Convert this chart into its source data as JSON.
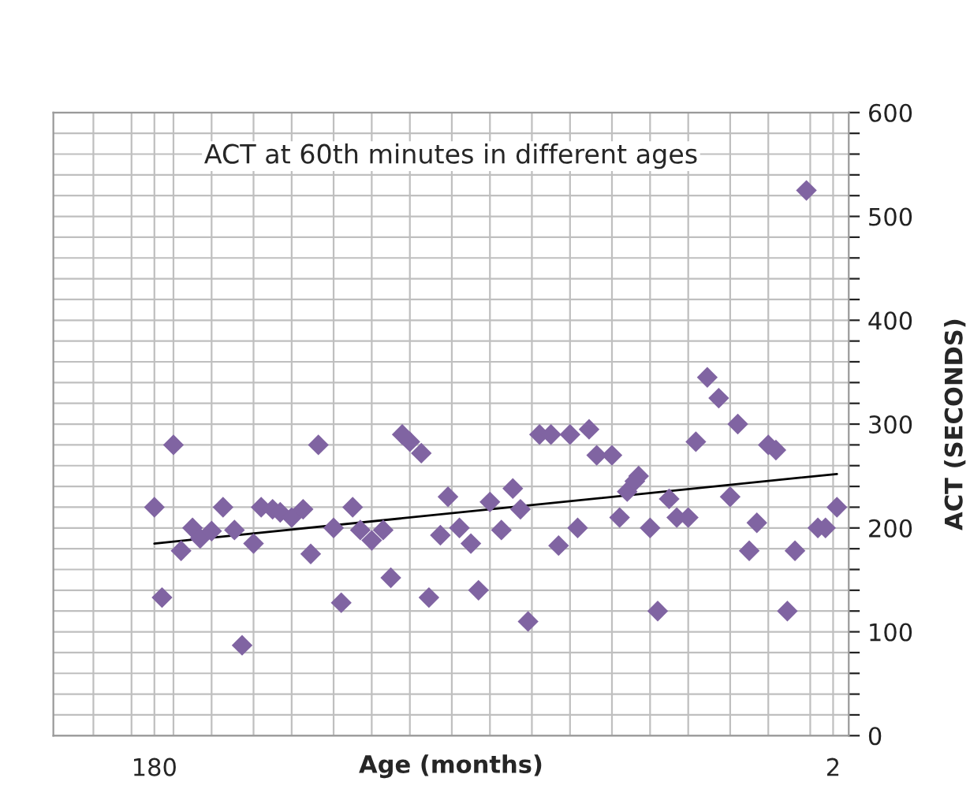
{
  "chart_data": {
    "type": "scatter",
    "title": "ACT at 60th minutes in different ages",
    "xlabel": "Age (months)",
    "ylabel": "ACT (SECONDS)",
    "xlim": [
      206.5,
      -2.1
    ],
    "ylim": [
      0,
      600
    ],
    "xticks": [
      180,
      2,
      {
        "value": 196,
        "label": null
      },
      {
        "value": 186,
        "label": null
      },
      {
        "value": 175,
        "label": null
      },
      {
        "value": 165,
        "label": null
      },
      {
        "value": 154,
        "label": null
      },
      {
        "value": 144,
        "label": null
      },
      {
        "value": 133,
        "label": null
      },
      {
        "value": 123,
        "label": null
      },
      {
        "value": 113,
        "label": null
      },
      {
        "value": 102,
        "label": null
      },
      {
        "value": 92,
        "label": null
      },
      {
        "value": 81,
        "label": null
      },
      {
        "value": 71,
        "label": null
      },
      {
        "value": 60,
        "label": null
      },
      {
        "value": 50,
        "label": null
      },
      {
        "value": 40,
        "label": null
      },
      {
        "value": 29,
        "label": null
      },
      {
        "value": 19,
        "label": null
      },
      {
        "value": 8,
        "label": null
      }
    ],
    "yticks": [
      0,
      100,
      200,
      300,
      400,
      500,
      600,
      {
        "value": 20,
        "label": null
      },
      {
        "value": 40,
        "label": null
      },
      {
        "value": 60,
        "label": null
      },
      {
        "value": 80,
        "label": null
      },
      {
        "value": 120,
        "label": null
      },
      {
        "value": 140,
        "label": null
      },
      {
        "value": 160,
        "label": null
      },
      {
        "value": 180,
        "label": null
      },
      {
        "value": 220,
        "label": null
      },
      {
        "value": 240,
        "label": null
      },
      {
        "value": 260,
        "label": null
      },
      {
        "value": 280,
        "label": null
      },
      {
        "value": 320,
        "label": null
      },
      {
        "value": 340,
        "label": null
      },
      {
        "value": 360,
        "label": null
      },
      {
        "value": 380,
        "label": null
      },
      {
        "value": 420,
        "label": null
      },
      {
        "value": 440,
        "label": null
      },
      {
        "value": 460,
        "label": null
      },
      {
        "value": 480,
        "label": null
      },
      {
        "value": 520,
        "label": null
      },
      {
        "value": 540,
        "label": null
      },
      {
        "value": 560,
        "label": null
      },
      {
        "value": 580,
        "label": null
      }
    ],
    "grid": true,
    "marker": "diamond",
    "series": [
      {
        "color": "#8064a2",
        "x": [
          180,
          175,
          178,
          173,
          170,
          168,
          165,
          162,
          159,
          157,
          154,
          152,
          149,
          147,
          144,
          141,
          139,
          137,
          133,
          131,
          128,
          126,
          123,
          120,
          118,
          115,
          113,
          110,
          108,
          105,
          103,
          100,
          97,
          95,
          92,
          89,
          86,
          84,
          82,
          79,
          76,
          74,
          71,
          69,
          66,
          64,
          60,
          58,
          56,
          54,
          53,
          50,
          48,
          45,
          43,
          40,
          38,
          35,
          32,
          29,
          27,
          24,
          22,
          19,
          17,
          14,
          12,
          9,
          6,
          4,
          1
        ],
        "values": [
          220,
          280,
          133,
          178,
          200,
          190,
          197,
          220,
          198,
          87,
          185,
          220,
          218,
          215,
          210,
          218,
          175,
          280,
          200,
          128,
          220,
          198,
          188,
          198,
          152,
          290,
          283,
          272,
          133,
          193,
          230,
          200,
          185,
          140,
          225,
          198,
          238,
          218,
          110,
          290,
          290,
          183,
          290,
          200,
          295,
          270,
          270,
          210,
          235,
          245,
          250,
          200,
          120,
          228,
          210,
          210,
          283,
          345,
          325,
          230,
          300,
          178,
          205,
          280,
          275,
          120,
          178,
          525,
          200,
          200,
          220
        ]
      },
      {
        "type": "line",
        "marker": "none",
        "color": "#000000",
        "x": [
          180,
          1
        ],
        "values": [
          185,
          252
        ]
      }
    ]
  }
}
